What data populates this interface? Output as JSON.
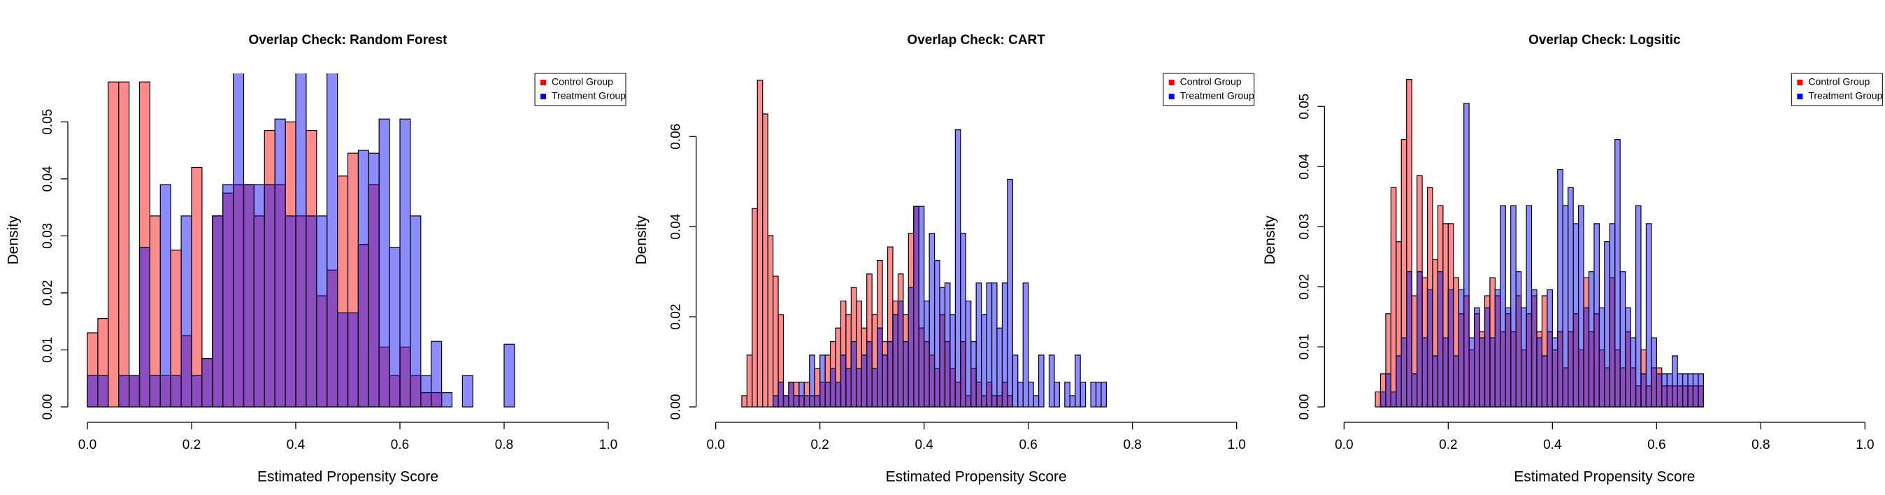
{
  "chart_data": [
    {
      "type": "histogram",
      "title": "Overlap Check: Random Forest",
      "x_label": "Estimated Propensity Score",
      "y_label": "Density",
      "bins": [
        0,
        0.02,
        0.04,
        0.06,
        0.08,
        0.1,
        0.12,
        0.14,
        0.16,
        0.18,
        0.2,
        0.22,
        0.24,
        0.26,
        0.28,
        0.3,
        0.32,
        0.34,
        0.36,
        0.38,
        0.4,
        0.42,
        0.44,
        0.46,
        0.48,
        0.5,
        0.52,
        0.54,
        0.56,
        0.58,
        0.6,
        0.62,
        0.64,
        0.66,
        0.68,
        0.7,
        0.72,
        0.74,
        0.76,
        0.78,
        0.8,
        0.82
      ],
      "series": [
        {
          "name": "Control Group",
          "color": "#ff0000",
          "values": [
            0.013,
            0.0155,
            0.057,
            0.057,
            0.0055,
            0.057,
            0.0335,
            0.0055,
            0.0275,
            0.0125,
            0.042,
            0.0085,
            0.0335,
            0.0375,
            0.039,
            0.039,
            0.0335,
            0.0485,
            0.039,
            0.05,
            0.0335,
            0.0485,
            0.0195,
            0.024,
            0.0405,
            0.0445,
            0.0285,
            0.039,
            0.0105,
            0.0055,
            0.0105,
            0.0055,
            0.0025,
            0.0025,
            0,
            0,
            0,
            0,
            0,
            0,
            0
          ]
        },
        {
          "name": "Treatment Group",
          "color": "#0000ff",
          "values": [
            0.0055,
            0.0055,
            0,
            0.0055,
            0.0055,
            0.028,
            0.0055,
            0.039,
            0.0055,
            0.0335,
            0.0055,
            0.0085,
            0.0335,
            0.039,
            0.06,
            0.039,
            0.039,
            0.039,
            0.0505,
            0.0335,
            0.06,
            0.0335,
            0.0335,
            0.06,
            0.0165,
            0.0165,
            0.045,
            0.0445,
            0.0505,
            0.028,
            0.0505,
            0.0335,
            0.0055,
            0.0115,
            0.0025,
            0,
            0.0055,
            0,
            0,
            0,
            0.011
          ]
        }
      ],
      "xlim": [
        0,
        1
      ],
      "xticks": [
        {
          "value": 0,
          "label": "0.0"
        },
        0.2,
        0.4,
        0.6,
        0.8,
        {
          "value": 1,
          "label": "1.0"
        }
      ],
      "ylim": [
        0,
        0.0585
      ],
      "yticks": [
        {
          "value": 0,
          "label": "0.00"
        },
        0.01,
        0.02,
        0.03,
        0.04,
        0.05
      ],
      "legend": "topright"
    },
    {
      "type": "histogram",
      "title": "Overlap Check: CART",
      "x_label": "Estimated Propensity Score",
      "y_label": "Density",
      "bins": [
        0.05,
        0.06,
        0.07,
        0.08,
        0.09,
        0.1,
        0.11,
        0.12,
        0.13,
        0.14,
        0.15,
        0.16,
        0.17,
        0.18,
        0.19,
        0.2,
        0.21,
        0.22,
        0.23,
        0.24,
        0.25,
        0.26,
        0.27,
        0.28,
        0.29,
        0.3,
        0.31,
        0.32,
        0.33,
        0.34,
        0.35,
        0.36,
        0.37,
        0.38,
        0.39,
        0.4,
        0.41,
        0.42,
        0.43,
        0.44,
        0.45,
        0.46,
        0.47,
        0.48,
        0.49,
        0.5,
        0.51,
        0.52,
        0.53,
        0.54,
        0.55,
        0.56,
        0.57,
        0.58,
        0.59,
        0.6,
        0.61,
        0.62,
        0.63,
        0.64,
        0.65,
        0.66,
        0.67,
        0.68,
        0.69,
        0.7,
        0.71,
        0.72,
        0.73,
        0.74,
        0.75
      ],
      "series": [
        {
          "name": "Control Group",
          "color": "#ff0000",
          "values": [
            0.0025,
            0.0115,
            0.044,
            0.0725,
            0.065,
            0.038,
            0.029,
            0.0205,
            0.0025,
            0.0055,
            0.0055,
            0.0025,
            0.0055,
            0.0025,
            0.0085,
            0.0055,
            0.0115,
            0.0145,
            0.0175,
            0.0235,
            0.0205,
            0.0265,
            0.0235,
            0.0175,
            0.0295,
            0.0205,
            0.0325,
            0.0145,
            0.0355,
            0.0235,
            0.0295,
            0.0205,
            0.0385,
            0.0445,
            0.0175,
            0.0145,
            0.0115,
            0.0085,
            0.0205,
            0.0145,
            0.0085,
            0.0055,
            0.0145,
            0.0025,
            0.0085,
            0.0055,
            0.0025,
            0.0055,
            0.0025,
            0.0025,
            0.0055,
            0.0025,
            0,
            0,
            0,
            0,
            0,
            0,
            0,
            0,
            0,
            0,
            0,
            0,
            0,
            0,
            0,
            0,
            0,
            0
          ]
        },
        {
          "name": "Treatment Group",
          "color": "#0000ff",
          "values": [
            0,
            0,
            0,
            0,
            0,
            0,
            0.0025,
            0.0055,
            0.0025,
            0.0055,
            0.0025,
            0.0055,
            0.0025,
            0.0115,
            0.0025,
            0.0115,
            0.0055,
            0.0085,
            0.0055,
            0.0115,
            0.0085,
            0.0145,
            0.0085,
            0.0115,
            0.0145,
            0.0085,
            0.0175,
            0.0115,
            0.0145,
            0.0205,
            0.0235,
            0.0145,
            0.0265,
            0.0445,
            0.0445,
            0.0235,
            0.0385,
            0.0325,
            0.0265,
            0.0275,
            0.0205,
            0.0615,
            0.0385,
            0.0235,
            0.0145,
            0.0275,
            0.0205,
            0.0275,
            0.0275,
            0.0175,
            0.0275,
            0.0505,
            0.0115,
            0.0055,
            0.0275,
            0.0055,
            0.0025,
            0.0115,
            0,
            0.0115,
            0.0055,
            0,
            0.0055,
            0.0025,
            0.0115,
            0.0055,
            0,
            0.0055,
            0.0055,
            0.0055
          ]
        }
      ],
      "xlim": [
        0,
        1
      ],
      "xticks": [
        {
          "value": 0,
          "label": "0.0"
        },
        0.2,
        0.4,
        0.6,
        0.8,
        {
          "value": 1,
          "label": "1.0"
        }
      ],
      "ylim": [
        0,
        0.074
      ],
      "yticks": [
        {
          "value": 0,
          "label": "0.00"
        },
        0.02,
        0.04,
        0.06
      ],
      "legend": "topright"
    },
    {
      "type": "histogram",
      "title": "Overlap Check: Logsitic",
      "x_label": "Estimated Propensity Score",
      "y_label": "Density",
      "bins": [
        0.06,
        0.07,
        0.08,
        0.09,
        0.1,
        0.11,
        0.12,
        0.13,
        0.14,
        0.15,
        0.16,
        0.17,
        0.18,
        0.19,
        0.2,
        0.21,
        0.22,
        0.23,
        0.24,
        0.25,
        0.26,
        0.27,
        0.28,
        0.29,
        0.3,
        0.31,
        0.32,
        0.33,
        0.34,
        0.35,
        0.36,
        0.37,
        0.38,
        0.39,
        0.4,
        0.41,
        0.42,
        0.43,
        0.44,
        0.45,
        0.46,
        0.47,
        0.48,
        0.49,
        0.5,
        0.51,
        0.52,
        0.53,
        0.54,
        0.55,
        0.56,
        0.57,
        0.58,
        0.59,
        0.6,
        0.61,
        0.62,
        0.63,
        0.64,
        0.65,
        0.66,
        0.67,
        0.68,
        0.69
      ],
      "series": [
        {
          "name": "Control Group",
          "color": "#ff0000",
          "values": [
            0.0025,
            0.0055,
            0.0155,
            0.0365,
            0.0275,
            0.0445,
            0.0545,
            0.0185,
            0.0385,
            0.0215,
            0.0365,
            0.0245,
            0.0335,
            0.0305,
            0.0305,
            0.0215,
            0.0155,
            0.0185,
            0.0095,
            0.0155,
            0.0125,
            0.0185,
            0.0215,
            0.0185,
            0.0125,
            0.0155,
            0.0125,
            0.0185,
            0.0095,
            0.0155,
            0.0185,
            0.0125,
            0.0185,
            0.0125,
            0.0095,
            0.0125,
            0.0065,
            0.0125,
            0.0155,
            0.0095,
            0.0215,
            0.0125,
            0.0155,
            0.0095,
            0.0065,
            0.0215,
            0.0095,
            0.0065,
            0.0125,
            0.0065,
            0.0035,
            0.0095,
            0.0035,
            0.0065,
            0.0065,
            0.0035,
            0.0035,
            0.0035,
            0.0035,
            0.0035,
            0.0035,
            0.0035,
            0.0035
          ]
        },
        {
          "name": "Treatment Group",
          "color": "#0000ff",
          "values": [
            0,
            0.0025,
            0.0055,
            0.0025,
            0.0085,
            0.0115,
            0.0225,
            0.0055,
            0.0225,
            0.0115,
            0.0195,
            0.0085,
            0.0225,
            0.0115,
            0.0195,
            0.0085,
            0.0195,
            0.0505,
            0.0115,
            0.0165,
            0.0115,
            0.0165,
            0.0115,
            0.0195,
            0.0335,
            0.0165,
            0.0335,
            0.0225,
            0.0165,
            0.0335,
            0.0195,
            0.0115,
            0.0085,
            0.0195,
            0.0115,
            0.0395,
            0.0335,
            0.0365,
            0.0305,
            0.0335,
            0.0165,
            0.0225,
            0.0305,
            0.0165,
            0.0275,
            0.0305,
            0.0445,
            0.0225,
            0.0165,
            0.0115,
            0.0335,
            0.0055,
            0.0305,
            0.0115,
            0.0055,
            0.0055,
            0.0055,
            0.0085,
            0.0055,
            0.0055,
            0.0055,
            0.0055,
            0.0055
          ]
        }
      ],
      "xlim": [
        0,
        1
      ],
      "xticks": [
        {
          "value": 0,
          "label": "0.0"
        },
        0.2,
        0.4,
        0.6,
        0.8,
        {
          "value": 1,
          "label": "1.0"
        }
      ],
      "ylim": [
        0,
        0.0555
      ],
      "yticks": [
        {
          "value": 0,
          "label": "0.00"
        },
        0.01,
        0.02,
        0.03,
        0.04,
        0.05
      ],
      "legend": "topright"
    }
  ]
}
